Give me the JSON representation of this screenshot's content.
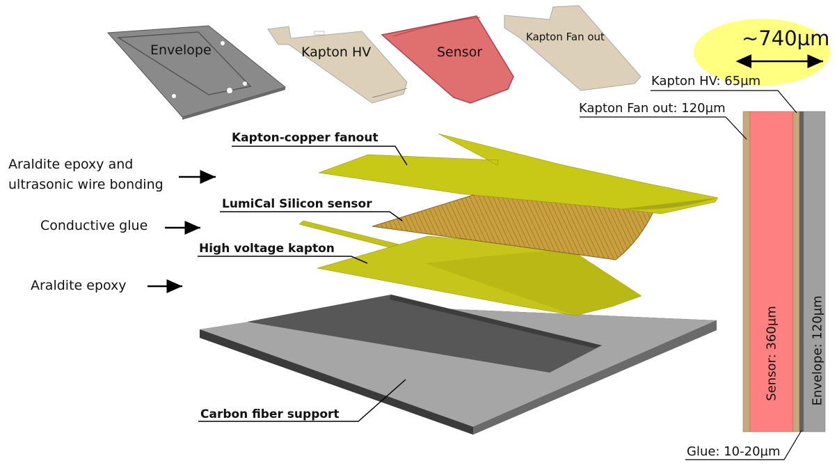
{
  "thumbnails": {
    "envelope": "Envelope",
    "kapton_hv": "Kapton HV",
    "sensor": "Sensor",
    "kapton_fanout": "Kapton Fan out"
  },
  "left_labels": {
    "araldite_wire_line1": "Araldite epoxy and",
    "araldite_wire_line2": "ultrasonic wire bonding",
    "conductive_glue": "Conductive glue",
    "araldite_epoxy": "Araldite epoxy"
  },
  "layer_labels": {
    "kapton_copper": "Kapton-copper fanout",
    "lumical_sensor": "LumiCal Silicon sensor",
    "hv_kapton": "High voltage kapton",
    "carbon_support": "Carbon fiber support"
  },
  "cross_section": {
    "total_thickness": "~740µm",
    "kapton_hv": "Kapton HV: 65µm",
    "kapton_fanout": "Kapton Fan out: 120µm",
    "sensor": "Sensor: 360µm",
    "envelope": "Envelope: 120µm",
    "glue": "Glue: 10-20µm"
  },
  "colors": {
    "kapton": "#c8a878",
    "sensor": "#ff8080",
    "envelope": "#a0a0a0",
    "yellow_layer": "#c8c814",
    "highlight": "#ffff80"
  }
}
